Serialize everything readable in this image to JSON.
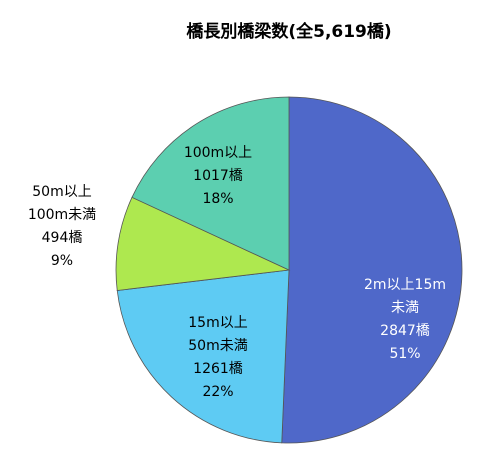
{
  "chart_data": {
    "type": "pie",
    "title": "橋長別橋梁数(全5,619橋)",
    "categories": [
      "2m以上15m\n未満",
      "15m以上\n50m未満",
      "50m以上\n100m未満",
      "100m以上"
    ],
    "values": [
      2847,
      1261,
      494,
      1017
    ],
    "value_labels": [
      "2847橋",
      "1261橋",
      "494橋",
      "1017橋"
    ],
    "percent_labels": [
      "51%",
      "22%",
      "9%",
      "18%"
    ],
    "colors": [
      "#4f68c9",
      "#5ecbf3",
      "#aee84f",
      "#5ccfb0"
    ],
    "start_angle": 0,
    "direction": "clockwise"
  }
}
